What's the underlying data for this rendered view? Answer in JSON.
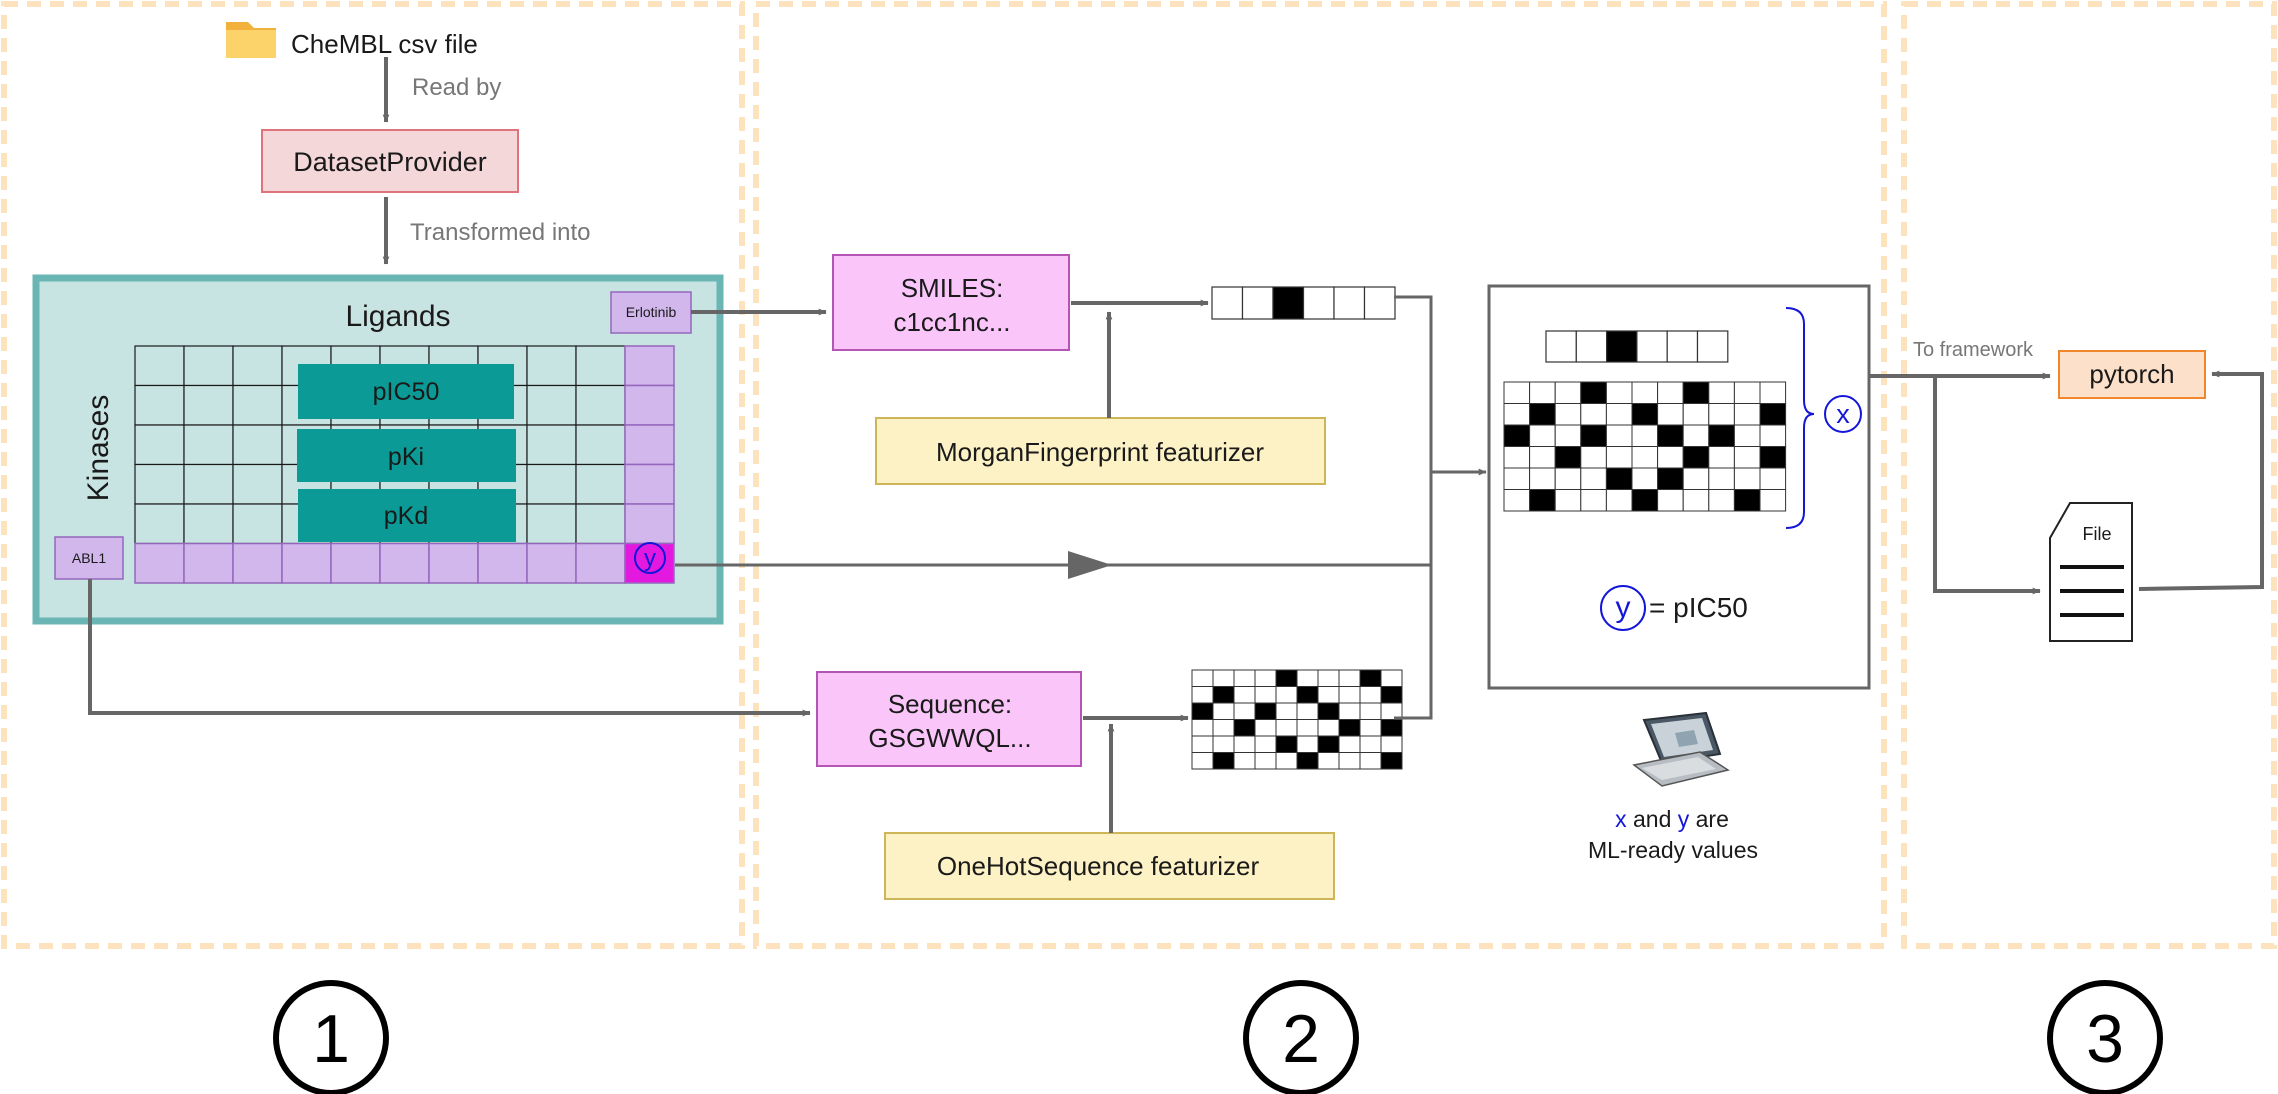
{
  "source": {
    "label": "CheMBL csv file",
    "icon": "folder-icon"
  },
  "edges": {
    "read_by": "Read by",
    "transformed_into": "Transformed into",
    "to_framework": "To framework"
  },
  "provider": {
    "label": "DatasetProvider"
  },
  "matrix": {
    "title": "Ligands",
    "side_label": "Kinases",
    "ligand_example": "Erlotinib",
    "kinase_example": "ABL1",
    "measures": [
      "pIC50",
      "pKi",
      "pKd"
    ],
    "target_symbol": "y",
    "rows": 6,
    "cols": 11
  },
  "smiles": {
    "line1": "SMILES:",
    "line2": "c1cc1nc..."
  },
  "sequence": {
    "line1": "Sequence:",
    "line2": "GSGWWQL..."
  },
  "featurizers": {
    "morgan": "MorganFingerprint featurizer",
    "onehot": "OneHotSequence featurizer"
  },
  "morgan_bits": [
    0,
    0,
    1,
    0,
    0,
    0
  ],
  "onehot_grid": [
    [
      0,
      0,
      0,
      0,
      1,
      0,
      0,
      0,
      1,
      0
    ],
    [
      0,
      1,
      0,
      0,
      0,
      1,
      0,
      0,
      0,
      1
    ],
    [
      1,
      0,
      0,
      1,
      0,
      0,
      1,
      0,
      0,
      0
    ],
    [
      0,
      0,
      1,
      0,
      0,
      0,
      0,
      1,
      0,
      1
    ],
    [
      0,
      0,
      0,
      0,
      1,
      0,
      1,
      0,
      0,
      0
    ],
    [
      0,
      1,
      0,
      0,
      0,
      1,
      0,
      0,
      0,
      1
    ]
  ],
  "combined": {
    "fp_bits": [
      0,
      0,
      1,
      0,
      0,
      0
    ],
    "grid": [
      [
        0,
        0,
        0,
        1,
        0,
        0,
        0,
        1,
        0,
        0,
        0
      ],
      [
        0,
        1,
        0,
        0,
        0,
        1,
        0,
        0,
        0,
        0,
        1
      ],
      [
        1,
        0,
        0,
        1,
        0,
        0,
        1,
        0,
        1,
        0,
        0
      ],
      [
        0,
        0,
        1,
        0,
        0,
        0,
        0,
        1,
        0,
        0,
        1
      ],
      [
        0,
        0,
        0,
        0,
        1,
        0,
        1,
        0,
        0,
        0,
        0
      ],
      [
        0,
        1,
        0,
        0,
        0,
        1,
        0,
        0,
        0,
        1,
        0
      ]
    ],
    "x_symbol": "x",
    "y_symbol": "y",
    "y_equation": "= pIC50",
    "note_x": "x",
    "note_and": " and ",
    "note_y": "y",
    "note_are": " are",
    "note_line2": "ML-ready values"
  },
  "framework": {
    "label": "pytorch"
  },
  "file": {
    "label": "File"
  },
  "steps": [
    "1",
    "2",
    "3"
  ],
  "colors": {
    "panel_dash": "#fde3bd",
    "provider_fill": "#f4d7d8",
    "provider_stroke": "#e0727c",
    "teal_fill": "#c8e4e2",
    "teal_stroke": "#69b6b4",
    "cell_fill": "#d2b7ec",
    "cell_stroke": "#9467bd",
    "measure_fill": "#0b9a96",
    "pink_fill": "#fac6fa",
    "pink_stroke": "#b454b4",
    "yellow_fill": "#fdf2c5",
    "yellow_stroke": "#cfb55a",
    "framework_fill": "#fde0c9",
    "framework_stroke": "#f2862d",
    "arrow": "#666666",
    "blue": "#1316d8",
    "magenta": "#e419e0"
  }
}
